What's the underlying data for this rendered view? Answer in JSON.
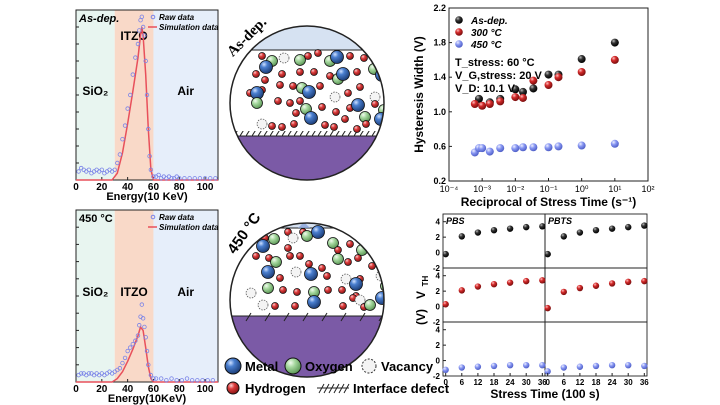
{
  "colors": {
    "raw_data": "#7b84e8",
    "simulation": "#e8505b",
    "sio2_region": "#e8f5f0",
    "itzo_region": "#f9d9c8",
    "air_region": "#e6eefa",
    "black_series": "#2b2b2b",
    "red_series": "#d42a2a",
    "blue_series": "#7b8cf0",
    "metal": "#2f5fa8",
    "oxygen": "#8fc88a",
    "hydrogen": "#d63a3a",
    "substrate": "#7b5aa6",
    "air_layer": "#d6e2f2"
  },
  "schematic": {
    "top_label": "As-dep.",
    "bottom_label": "450 °C",
    "legend": {
      "metal": "Metal",
      "oxygen": "Oxygen",
      "vacancy": "Vacancy",
      "hydrogen": "Hydrogen",
      "interface_defect": "Interface defect"
    }
  },
  "chart_data": [
    {
      "id": "tof-sims-asdep",
      "type": "scatter",
      "title": "As-dep.",
      "xlabel": "Energy(10 KeV)",
      "ylabel": "",
      "xlim": [
        0,
        110
      ],
      "xticks": [
        0,
        20,
        40,
        60,
        80,
        100
      ],
      "ylim": [
        0,
        1
      ],
      "regions": [
        {
          "label": "SiO₂",
          "from": 0,
          "to": 30
        },
        {
          "label": "ITZO",
          "from": 30,
          "to": 60
        },
        {
          "label": "Air",
          "from": 60,
          "to": 110
        }
      ],
      "legend": [
        "Raw data",
        "Simulation data"
      ],
      "legend_position": "top-right",
      "series": [
        {
          "name": "Raw data",
          "kind": "points",
          "x": [
            2,
            4,
            6,
            8,
            10,
            12,
            14,
            16,
            18,
            20,
            22,
            24,
            26,
            28,
            30,
            32,
            34,
            36,
            38,
            40,
            42,
            44,
            46,
            48,
            49,
            50,
            51,
            52,
            53,
            54,
            55,
            56,
            57,
            58,
            60,
            62,
            64,
            66,
            68,
            70,
            72,
            74,
            76,
            78,
            80,
            84,
            88,
            92,
            96,
            100,
            104,
            108
          ],
          "y": [
            0.05,
            0.07,
            0.06,
            0.05,
            0.06,
            0.04,
            0.05,
            0.06,
            0.05,
            0.06,
            0.04,
            0.05,
            0.06,
            0.05,
            0.06,
            0.1,
            0.15,
            0.24,
            0.32,
            0.42,
            0.5,
            0.62,
            0.72,
            0.8,
            0.88,
            0.94,
            0.96,
            0.9,
            0.85,
            0.7,
            0.5,
            0.3,
            0.14,
            0.06,
            0.02,
            0.02,
            0.03,
            0.01,
            0.02,
            0.01,
            0.02,
            0.01,
            0.01,
            0.02,
            0.01,
            0.01,
            0.01,
            0.01,
            0.01,
            0.01,
            0.01,
            0.01
          ]
        },
        {
          "name": "Simulation data",
          "kind": "line",
          "x": [
            0,
            28,
            32,
            36,
            40,
            44,
            48,
            50,
            51,
            52,
            54,
            56,
            58,
            60,
            110
          ],
          "y": [
            0.0,
            0.0,
            0.04,
            0.16,
            0.33,
            0.52,
            0.72,
            0.85,
            0.9,
            0.85,
            0.62,
            0.3,
            0.06,
            0.0,
            0.0
          ]
        }
      ]
    },
    {
      "id": "tof-sims-450",
      "type": "scatter",
      "title": "450 °C",
      "xlabel": "Energy(10KeV)",
      "ylabel": "",
      "xlim": [
        0,
        110
      ],
      "xticks": [
        0,
        20,
        40,
        60,
        80,
        100
      ],
      "ylim": [
        0,
        1
      ],
      "regions": [
        {
          "label": "SiO₂",
          "from": 0,
          "to": 30
        },
        {
          "label": "ITZO",
          "from": 30,
          "to": 60
        },
        {
          "label": "Air",
          "from": 60,
          "to": 110
        }
      ],
      "legend": [
        "Raw data",
        "Simulation data"
      ],
      "legend_position": "top-right",
      "series": [
        {
          "name": "Raw data",
          "kind": "points",
          "x": [
            2,
            4,
            6,
            8,
            10,
            12,
            14,
            16,
            18,
            20,
            22,
            24,
            26,
            28,
            30,
            32,
            34,
            36,
            38,
            40,
            42,
            44,
            46,
            48,
            49,
            50,
            51,
            52,
            53,
            54,
            55,
            56,
            58,
            60,
            62,
            66,
            70,
            74,
            78,
            82,
            86,
            90,
            94,
            98,
            102,
            106
          ],
          "y": [
            0.04,
            0.05,
            0.05,
            0.04,
            0.05,
            0.05,
            0.04,
            0.05,
            0.04,
            0.05,
            0.04,
            0.05,
            0.06,
            0.05,
            0.06,
            0.07,
            0.08,
            0.11,
            0.14,
            0.18,
            0.2,
            0.22,
            0.24,
            0.27,
            0.33,
            0.38,
            0.45,
            0.37,
            0.32,
            0.26,
            0.18,
            0.1,
            0.04,
            0.02,
            0.02,
            0.02,
            0.01,
            0.02,
            0.01,
            0.01,
            0.02,
            0.01,
            0.01,
            0.01,
            0.01,
            0.01
          ]
        },
        {
          "name": "Simulation data",
          "kind": "line",
          "x": [
            0,
            28,
            32,
            36,
            40,
            44,
            48,
            50,
            52,
            54,
            56,
            58,
            60,
            110
          ],
          "y": [
            0.0,
            0.0,
            0.02,
            0.06,
            0.12,
            0.19,
            0.27,
            0.32,
            0.3,
            0.2,
            0.09,
            0.02,
            0.0,
            0.0
          ]
        }
      ]
    },
    {
      "id": "hysteresis-width",
      "type": "scatter",
      "title": "",
      "xlabel": "Reciprocal of Stress Time (s⁻¹)",
      "ylabel": "Hysteresis Width (V)",
      "xscale": "log",
      "xlim": [
        0.0001,
        100
      ],
      "xtick_labels": [
        "10⁻⁴",
        "10⁻³",
        "10⁻²",
        "10⁻¹",
        "10⁰",
        "10¹",
        "10²"
      ],
      "ylim": [
        0.2,
        2.2
      ],
      "yticks": [
        0.2,
        0.6,
        1.0,
        1.4,
        1.8,
        2.2
      ],
      "legend_position": "top-left",
      "annotations": [
        "T_stress: 60 °C",
        "V_G,stress: 20 V",
        "V_D: 10.1 V"
      ],
      "series": [
        {
          "name": "As-dep.",
          "x": [
            0.0008,
            0.0017,
            0.0035,
            0.01,
            0.017,
            0.035,
            0.1,
            0.2,
            1,
            10
          ],
          "y": [
            1.15,
            1.11,
            1.15,
            1.26,
            1.23,
            1.27,
            1.43,
            1.43,
            1.61,
            1.8
          ]
        },
        {
          "name": "300 °C",
          "x": [
            0.0006,
            0.001,
            0.0017,
            0.0035,
            0.01,
            0.017,
            0.035,
            0.1,
            0.2,
            1,
            10
          ],
          "y": [
            1.09,
            1.07,
            1.09,
            1.12,
            1.17,
            1.16,
            1.36,
            1.31,
            1.4,
            1.46,
            1.6
          ]
        },
        {
          "name": "450 °C",
          "x": [
            0.0006,
            0.0008,
            0.001,
            0.0017,
            0.0035,
            0.01,
            0.017,
            0.035,
            0.1,
            0.2,
            1,
            10
          ],
          "y": [
            0.53,
            0.58,
            0.58,
            0.54,
            0.58,
            0.58,
            0.59,
            0.59,
            0.59,
            0.6,
            0.61,
            0.63
          ]
        }
      ]
    },
    {
      "id": "vth-shift",
      "type": "scatter",
      "title": "",
      "xlabel": "Stress Time (100 s)",
      "ylabel": "V_TH (V)",
      "xlim": [
        -1,
        37
      ],
      "xticks": [
        0,
        6,
        12,
        18,
        24,
        30,
        36
      ],
      "ylim": [
        -2,
        5
      ],
      "yticks": [
        -2,
        0,
        2,
        4
      ],
      "columns": [
        "PBS",
        "PBTS"
      ],
      "x": [
        0,
        6,
        12,
        18,
        24,
        30,
        36
      ],
      "panels": [
        {
          "row": 0,
          "col": "PBS",
          "series": "As-dep.",
          "y": [
            -0.2,
            2.1,
            2.6,
            2.9,
            3.1,
            3.3,
            3.4
          ]
        },
        {
          "row": 0,
          "col": "PBTS",
          "series": "As-dep.",
          "y": [
            -0.2,
            2.1,
            2.6,
            2.9,
            3.1,
            3.3,
            3.5
          ]
        },
        {
          "row": 1,
          "col": "PBS",
          "series": "300 °C",
          "y": [
            0.3,
            2.1,
            2.6,
            2.9,
            3.1,
            3.3,
            3.4
          ]
        },
        {
          "row": 1,
          "col": "PBTS",
          "series": "300 °C",
          "y": [
            -0.2,
            1.9,
            2.4,
            2.7,
            3.0,
            3.2,
            3.3
          ]
        },
        {
          "row": 2,
          "col": "PBS",
          "series": "450 °C",
          "y": [
            -1.2,
            -0.9,
            -0.8,
            -0.7,
            -0.6,
            -0.6,
            -0.6
          ]
        },
        {
          "row": 2,
          "col": "PBTS",
          "series": "450 °C",
          "y": [
            -1.4,
            -0.9,
            -0.8,
            -0.7,
            -0.6,
            -0.6,
            -0.7
          ]
        }
      ]
    }
  ]
}
